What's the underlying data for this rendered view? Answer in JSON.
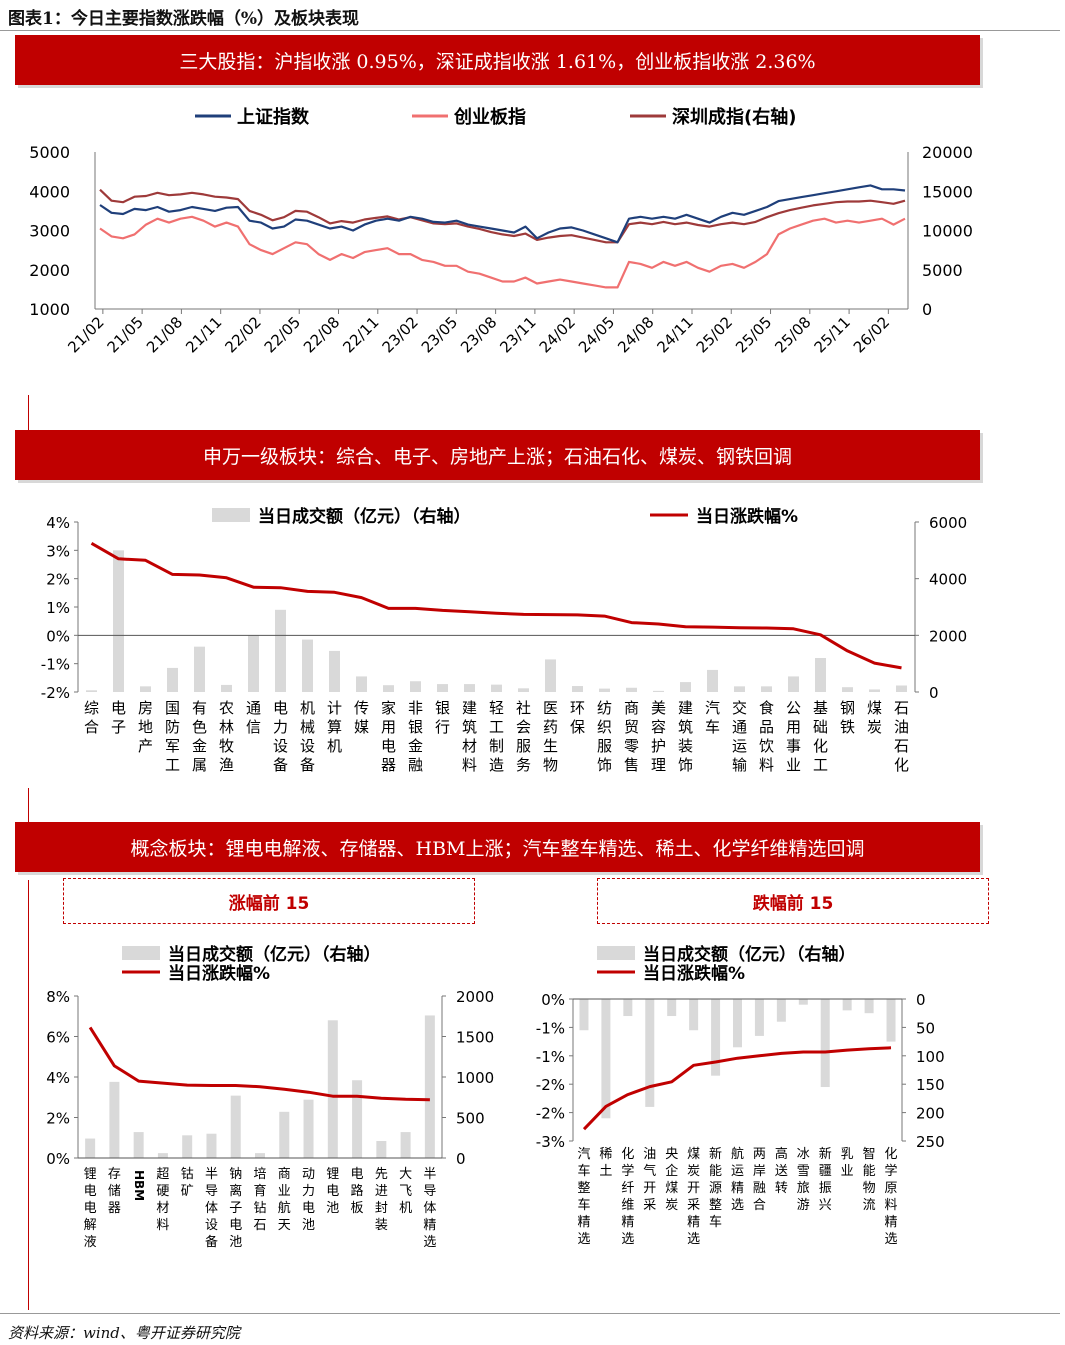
{
  "figure_title": "图表1：今日主要指数涨跌幅（%）及板块表现",
  "source": "资料来源：wind、粤开证券研究院",
  "sections": {
    "indices_banner": "三大股指：沪指收涨 0.95%，深证成指收涨 1.61%，创业板指收涨 2.36%",
    "industry_banner": "申万一级板块：综合、电子、房地产上涨；石油石化、煤炭、钢铁回调",
    "concept_banner": "概念板块：锂电电解液、存储器、HBM上涨；汽车整车精选、稀土、化学纤维精选回调",
    "gainers_title": "涨幅前 15",
    "losers_title": "跌幅前 15"
  },
  "colors": {
    "banner": "#c00000",
    "shanghai": "#1f3f7a",
    "chinext": "#f07070",
    "shenzhen": "#9e3a3a",
    "bar": "#d9d9d9",
    "line": "#c00000"
  },
  "chart_data": [
    {
      "id": "index-chart",
      "type": "line",
      "title": "",
      "legend": [
        "上证指数",
        "创业板指",
        "深圳成指(右轴)"
      ],
      "legend_position": "top",
      "x_ticks": [
        "21/02",
        "21/05",
        "21/08",
        "21/11",
        "22/02",
        "22/05",
        "22/08",
        "22/11",
        "23/02",
        "23/05",
        "23/08",
        "23/11",
        "24/02",
        "24/05",
        "24/08",
        "24/11",
        "25/02",
        "25/05",
        "25/08",
        "25/11",
        "26/02"
      ],
      "y_left": {
        "min": 1000,
        "max": 5000,
        "ticks": [
          "5000",
          "4000",
          "3000",
          "2000",
          "1000"
        ]
      },
      "y_right": {
        "min": 0,
        "max": 20000,
        "ticks": [
          "20000",
          "15000",
          "10000",
          "5000",
          "0"
        ]
      },
      "series": [
        {
          "name": "上证指数",
          "axis": "left",
          "values": [
            3650,
            3450,
            3420,
            3550,
            3520,
            3600,
            3480,
            3520,
            3600,
            3550,
            3500,
            3580,
            3600,
            3250,
            3200,
            3050,
            3100,
            3280,
            3250,
            3150,
            3050,
            3100,
            3000,
            3150,
            3250,
            3300,
            3250,
            3350,
            3300,
            3220,
            3200,
            3250,
            3150,
            3100,
            3050,
            3000,
            2950,
            3100,
            2800,
            2950,
            3050,
            3080,
            3000,
            2900,
            2800,
            2700,
            3300,
            3350,
            3300,
            3350,
            3300,
            3400,
            3300,
            3200,
            3350,
            3450,
            3400,
            3500,
            3600,
            3750,
            3800,
            3850,
            3900,
            3950,
            4000,
            4050,
            4100,
            4150,
            4050,
            4050,
            4020
          ]
        },
        {
          "name": "创业板指",
          "axis": "left",
          "values": [
            3050,
            2850,
            2800,
            2900,
            3150,
            3300,
            3200,
            3300,
            3350,
            3250,
            3100,
            3200,
            3100,
            2650,
            2500,
            2400,
            2550,
            2700,
            2650,
            2400,
            2250,
            2400,
            2300,
            2450,
            2500,
            2550,
            2400,
            2400,
            2250,
            2200,
            2100,
            2100,
            1950,
            1900,
            1800,
            1700,
            1700,
            1800,
            1650,
            1700,
            1750,
            1700,
            1650,
            1600,
            1550,
            1550,
            2200,
            2150,
            2050,
            2200,
            2100,
            2200,
            2050,
            1950,
            2100,
            2150,
            2050,
            2200,
            2400,
            2900,
            3050,
            3150,
            3250,
            3300,
            3200,
            3250,
            3200,
            3250,
            3300,
            3150,
            3300
          ]
        },
        {
          "name": "深圳成指(右轴)",
          "axis": "right",
          "values": [
            15200,
            13800,
            13600,
            14300,
            14400,
            14800,
            14500,
            14600,
            14800,
            14600,
            14300,
            14200,
            14000,
            12500,
            12000,
            11300,
            11700,
            12500,
            12400,
            11700,
            10900,
            11200,
            11000,
            11400,
            11600,
            11800,
            11400,
            11700,
            11300,
            10900,
            10800,
            10900,
            10500,
            10200,
            9800,
            9500,
            9300,
            9600,
            8800,
            9100,
            9300,
            9400,
            9100,
            8800,
            8500,
            8500,
            10800,
            11000,
            10800,
            11100,
            10800,
            11000,
            10700,
            10500,
            10800,
            11000,
            10800,
            11100,
            11700,
            12200,
            12600,
            12900,
            13200,
            13400,
            13600,
            13700,
            13700,
            13800,
            13600,
            13400,
            13800
          ]
        }
      ]
    },
    {
      "id": "industry-chart",
      "type": "bar",
      "title": "",
      "legend": [
        "当日成交额（亿元）（右轴）",
        "当日涨跌幅%"
      ],
      "legend_position": "top",
      "categories": [
        "综合",
        "电子",
        "房地产",
        "国防军工",
        "有色金属",
        "农林牧渔",
        "通信",
        "电力设备",
        "机械设备",
        "计算机",
        "传媒",
        "家用电器",
        "非银金融",
        "银行",
        "建筑材料",
        "轻工制造",
        "社会服务",
        "医药生物",
        "环保",
        "纺织服饰",
        "商贸零售",
        "美容护理",
        "建筑装饰",
        "汽车",
        "交通运输",
        "食品饮料",
        "公用事业",
        "基础化工",
        "钢铁",
        "煤炭",
        "石油石化"
      ],
      "y_left": {
        "min": -2,
        "max": 4,
        "ticks": [
          "4%",
          "3%",
          "2%",
          "1%",
          "0%",
          "-1%",
          "-2%"
        ]
      },
      "y_right": {
        "min": 0,
        "max": 6000,
        "ticks": [
          "6000",
          "4000",
          "2000",
          "0"
        ]
      },
      "series": [
        {
          "name": "当日成交额（亿元）（右轴）",
          "axis": "right",
          "kind": "bar",
          "values": [
            60,
            5000,
            200,
            850,
            1600,
            250,
            2000,
            2900,
            1850,
            1450,
            550,
            240,
            380,
            280,
            280,
            260,
            130,
            1150,
            210,
            120,
            150,
            40,
            350,
            780,
            200,
            200,
            550,
            1200,
            170,
            90,
            230
          ]
        },
        {
          "name": "当日涨跌幅%",
          "axis": "left",
          "kind": "line",
          "values": [
            3.25,
            2.7,
            2.65,
            2.15,
            2.13,
            2.03,
            1.7,
            1.68,
            1.55,
            1.52,
            1.33,
            0.95,
            0.95,
            0.88,
            0.83,
            0.78,
            0.74,
            0.73,
            0.72,
            0.68,
            0.45,
            0.4,
            0.3,
            0.29,
            0.27,
            0.26,
            0.23,
            0.02,
            -0.55,
            -0.98,
            -1.15
          ]
        }
      ]
    },
    {
      "id": "gainers-chart",
      "type": "bar",
      "title": "",
      "legend": [
        "当日成交额（亿元）（右轴）",
        "当日涨跌幅%"
      ],
      "legend_position": "top",
      "categories": [
        "锂电电解液",
        "存储器",
        "HBM",
        "超硬材料",
        "钴矿",
        "半导体设备",
        "钠离子电池",
        "培育钻石",
        "商业航天",
        "动力电池",
        "锂电池",
        "电路板",
        "先进封装",
        "大飞机",
        "半导体精选"
      ],
      "y_left": {
        "min": 0,
        "max": 8,
        "ticks": [
          "8%",
          "6%",
          "4%",
          "2%",
          "0%"
        ]
      },
      "y_right": {
        "min": 0,
        "max": 2000,
        "ticks": [
          "2000",
          "1500",
          "1000",
          "500",
          "0"
        ]
      },
      "series": [
        {
          "name": "当日成交额（亿元）（右轴）",
          "axis": "right",
          "kind": "bar",
          "values": [
            240,
            940,
            320,
            60,
            280,
            300,
            770,
            60,
            570,
            720,
            1700,
            960,
            210,
            320,
            1760
          ]
        },
        {
          "name": "当日涨跌幅%",
          "axis": "left",
          "kind": "line",
          "values": [
            6.45,
            4.55,
            3.8,
            3.7,
            3.6,
            3.58,
            3.58,
            3.52,
            3.4,
            3.25,
            3.05,
            3.05,
            2.95,
            2.9,
            2.88
          ]
        }
      ]
    },
    {
      "id": "losers-chart",
      "type": "bar",
      "title": "",
      "legend": [
        "当日成交额（亿元）（右轴）",
        "当日涨跌幅%"
      ],
      "legend_position": "top",
      "categories": [
        "汽车整车精选",
        "稀土",
        "化学纤维精选",
        "油气开采",
        "央企煤炭",
        "煤炭开采精选",
        "新能源整车",
        "航运精选",
        "两岸融合",
        "高送转",
        "冰雪旅游",
        "新疆振兴",
        "乳业",
        "智能物流",
        "化学原料精选"
      ],
      "y_left": {
        "min": -3,
        "max": 0,
        "ticks": [
          "0%",
          "-1%",
          "-1%",
          "-2%",
          "-2%",
          "-3%"
        ]
      },
      "y_right": {
        "min": 0,
        "max": 250,
        "ticks": [
          "0",
          "50",
          "100",
          "150",
          "200",
          "250"
        ]
      },
      "series": [
        {
          "name": "当日成交额（亿元）（右轴）",
          "axis": "right",
          "kind": "bar",
          "values": [
            55,
            210,
            30,
            190,
            30,
            55,
            135,
            85,
            65,
            40,
            10,
            155,
            20,
            25,
            75
          ]
        },
        {
          "name": "当日涨跌幅%",
          "axis": "left",
          "kind": "line",
          "values": [
            -2.75,
            -2.27,
            -2.02,
            -1.85,
            -1.75,
            -1.4,
            -1.33,
            -1.25,
            -1.2,
            -1.15,
            -1.12,
            -1.12,
            -1.08,
            -1.05,
            -1.03
          ]
        }
      ]
    }
  ]
}
